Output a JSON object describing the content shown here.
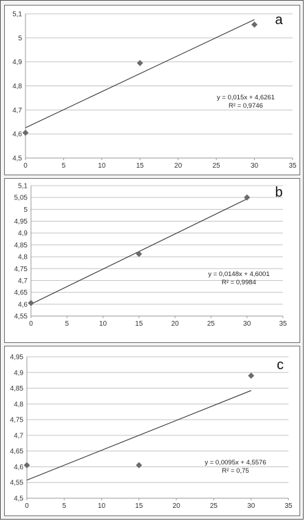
{
  "chart_data": [
    {
      "type": "scatter",
      "panel_label": "a",
      "points": {
        "x": [
          0,
          15,
          30
        ],
        "y": [
          4.605,
          4.895,
          5.055
        ]
      },
      "trendline": {
        "slope": 0.015,
        "intercept": 4.6261
      },
      "equation": "y = 0,015x + 4,6261",
      "r2": "R² = 0,9746",
      "xlim": [
        0,
        35
      ],
      "ylim": [
        4.5,
        5.1
      ],
      "x_ticks": [
        "0",
        "5",
        "10",
        "15",
        "20",
        "25",
        "30",
        "35"
      ],
      "y_ticks": [
        "4,5",
        "4,6",
        "4,7",
        "4,8",
        "4,9",
        "5",
        "5,1"
      ],
      "grid": "horizontal",
      "marker_color": "#6b6b6b"
    },
    {
      "type": "scatter",
      "panel_label": "b",
      "points": {
        "x": [
          0,
          15,
          30
        ],
        "y": [
          4.605,
          4.812,
          5.05
        ]
      },
      "trendline": {
        "slope": 0.0148,
        "intercept": 4.6001
      },
      "equation": "y = 0,0148x + 4,6001",
      "r2": "R² = 0,9984",
      "xlim": [
        0,
        35
      ],
      "ylim": [
        4.55,
        5.1
      ],
      "x_ticks": [
        "0",
        "5",
        "10",
        "15",
        "20",
        "25",
        "30",
        "35"
      ],
      "y_ticks": [
        "4,55",
        "4,6",
        "4,65",
        "4,7",
        "4,75",
        "4,8",
        "4,85",
        "4,9",
        "4,95",
        "5",
        "5,05",
        "5,1"
      ],
      "grid": "horizontal",
      "marker_color": "#6b6b6b"
    },
    {
      "type": "scatter",
      "panel_label": "c",
      "points": {
        "x": [
          0,
          15,
          30
        ],
        "y": [
          4.605,
          4.605,
          4.89
        ]
      },
      "trendline": {
        "slope": 0.0095,
        "intercept": 4.5576
      },
      "equation": "y = 0,0095x + 4,5576",
      "r2": "R² = 0,75",
      "xlim": [
        0,
        35
      ],
      "ylim": [
        4.5,
        4.95
      ],
      "x_ticks": [
        "0",
        "5",
        "10",
        "15",
        "20",
        "25",
        "30",
        "35"
      ],
      "y_ticks": [
        "4,5",
        "4,55",
        "4,6",
        "4,65",
        "4,7",
        "4,75",
        "4,8",
        "4,85",
        "4,9",
        "4,95"
      ],
      "grid": "horizontal",
      "marker_color": "#6b6b6b"
    }
  ]
}
